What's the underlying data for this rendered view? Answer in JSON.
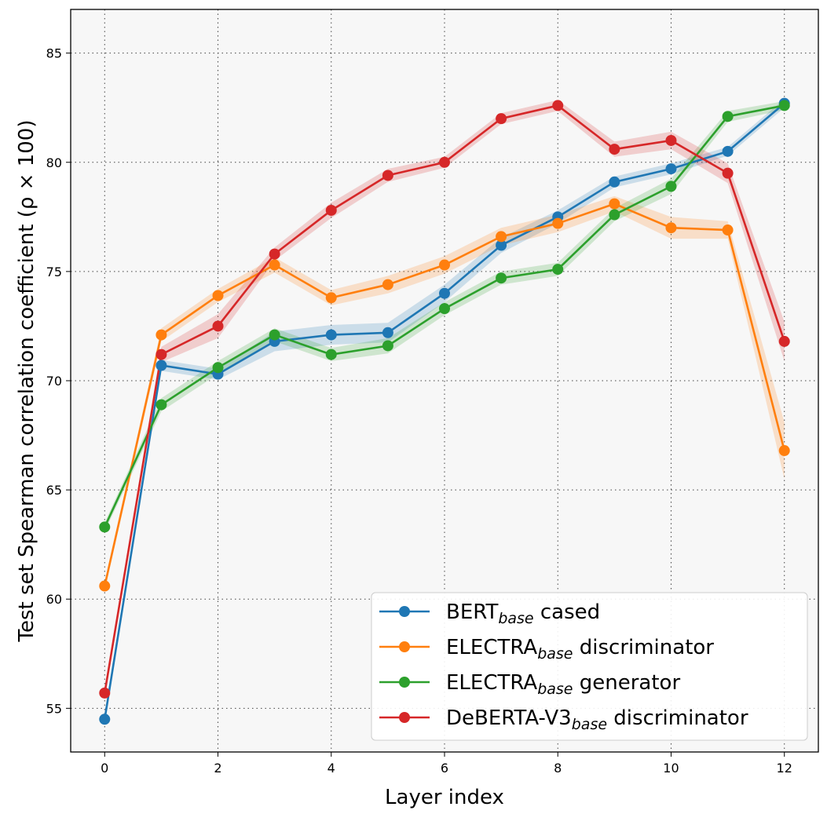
{
  "chart_data": {
    "type": "line",
    "title": "",
    "xlabel": "Layer index",
    "ylabel": "Test set Spearman correlation coefficient (ρ × 100)",
    "xlim": [
      -0.6,
      12.6
    ],
    "ylim": [
      53,
      87
    ],
    "xticks": [
      0,
      2,
      4,
      6,
      8,
      10,
      12
    ],
    "yticks": [
      55,
      60,
      65,
      70,
      75,
      80,
      85
    ],
    "grid": true,
    "legend_position": "lower-right",
    "x": [
      0,
      1,
      2,
      3,
      4,
      5,
      6,
      7,
      8,
      9,
      10,
      11,
      12
    ],
    "series": [
      {
        "name": "BERT",
        "name_sub": "base",
        "name_suffix": " cased",
        "color": "#1f77b4",
        "values": [
          54.5,
          70.7,
          70.3,
          71.8,
          72.1,
          72.2,
          74.0,
          76.2,
          77.5,
          79.1,
          79.7,
          80.5,
          82.7
        ],
        "spread": [
          0.2,
          0.25,
          0.25,
          0.45,
          0.45,
          0.45,
          0.4,
          0.35,
          0.3,
          0.25,
          0.25,
          0.2,
          0.2
        ]
      },
      {
        "name": "ELECTRA",
        "name_sub": "base",
        "name_suffix": " discriminator",
        "color": "#ff7f0e",
        "values": [
          60.6,
          72.1,
          73.9,
          75.3,
          73.8,
          74.4,
          75.3,
          76.6,
          77.2,
          78.1,
          77.0,
          76.9,
          66.8
        ],
        "spread": [
          0.2,
          0.3,
          0.3,
          0.35,
          0.35,
          0.4,
          0.4,
          0.4,
          0.4,
          0.35,
          0.5,
          0.4,
          1.3
        ]
      },
      {
        "name": "ELECTRA",
        "name_sub": "base",
        "name_suffix": " generator",
        "color": "#2ca02c",
        "values": [
          63.3,
          68.9,
          70.6,
          72.1,
          71.2,
          71.6,
          73.3,
          74.7,
          75.1,
          77.6,
          78.9,
          82.1,
          82.6
        ],
        "spread": [
          0.2,
          0.3,
          0.3,
          0.3,
          0.3,
          0.35,
          0.3,
          0.3,
          0.3,
          0.3,
          0.35,
          0.25,
          0.2
        ]
      },
      {
        "name": "DeBERTA-V3",
        "name_sub": "base",
        "name_suffix": " discriminator",
        "color": "#d62728",
        "values": [
          55.7,
          71.2,
          72.5,
          75.8,
          77.8,
          79.4,
          80.0,
          82.0,
          82.6,
          80.6,
          81.0,
          79.5,
          71.8
        ],
        "spread": [
          0.2,
          0.35,
          0.55,
          0.3,
          0.35,
          0.3,
          0.25,
          0.25,
          0.25,
          0.35,
          0.4,
          0.45,
          0.9
        ]
      }
    ]
  }
}
